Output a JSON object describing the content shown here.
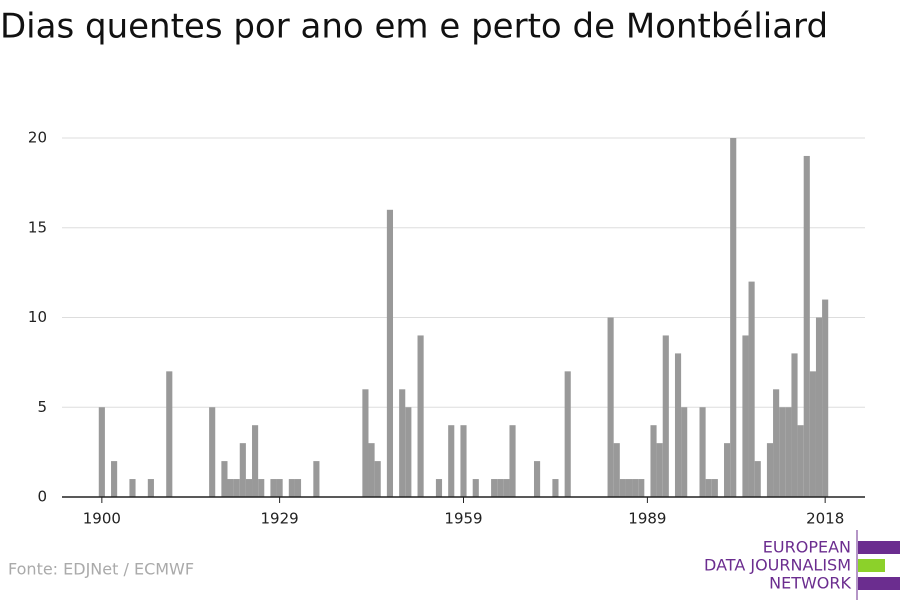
{
  "chart_data": {
    "type": "bar",
    "title": "Dias quentes por ano em e perto de Montbéliard",
    "x": [
      1900,
      1902,
      1905,
      1908,
      1911,
      1918,
      1920,
      1921,
      1922,
      1923,
      1924,
      1925,
      1926,
      1928,
      1929,
      1931,
      1932,
      1935,
      1943,
      1944,
      1945,
      1947,
      1949,
      1950,
      1952,
      1955,
      1957,
      1959,
      1961,
      1964,
      1965,
      1966,
      1967,
      1971,
      1974,
      1976,
      1983,
      1984,
      1985,
      1986,
      1987,
      1988,
      1990,
      1991,
      1992,
      1994,
      1995,
      1998,
      1999,
      2000,
      2002,
      2003,
      2005,
      2006,
      2007,
      2009,
      2010,
      2011,
      2012,
      2013,
      2014,
      2015,
      2016,
      2017,
      2018
    ],
    "values": [
      5,
      2,
      1,
      1,
      7,
      5,
      2,
      1,
      1,
      3,
      1,
      4,
      1,
      1,
      1,
      1,
      1,
      2,
      6,
      3,
      2,
      16,
      6,
      5,
      9,
      1,
      4,
      4,
      1,
      1,
      1,
      1,
      4,
      2,
      1,
      7,
      10,
      3,
      1,
      1,
      1,
      1,
      4,
      3,
      9,
      8,
      5,
      5,
      1,
      1,
      3,
      20,
      9,
      12,
      2,
      3,
      6,
      5,
      5,
      8,
      4,
      19,
      7,
      10,
      11
    ],
    "color": "#999999",
    "xlim": [
      1893.5,
      2024.5
    ],
    "xticks": [
      1900,
      1929,
      1959,
      1989,
      2018
    ],
    "ylim": [
      0,
      20
    ],
    "yticks": [
      0,
      5,
      10,
      15,
      20
    ],
    "grid": true
  },
  "source": "Fonte: EDJNet / ECMWF",
  "logo": [
    "EUROPEAN",
    "DATA JOURNALISM",
    "NETWORK"
  ]
}
